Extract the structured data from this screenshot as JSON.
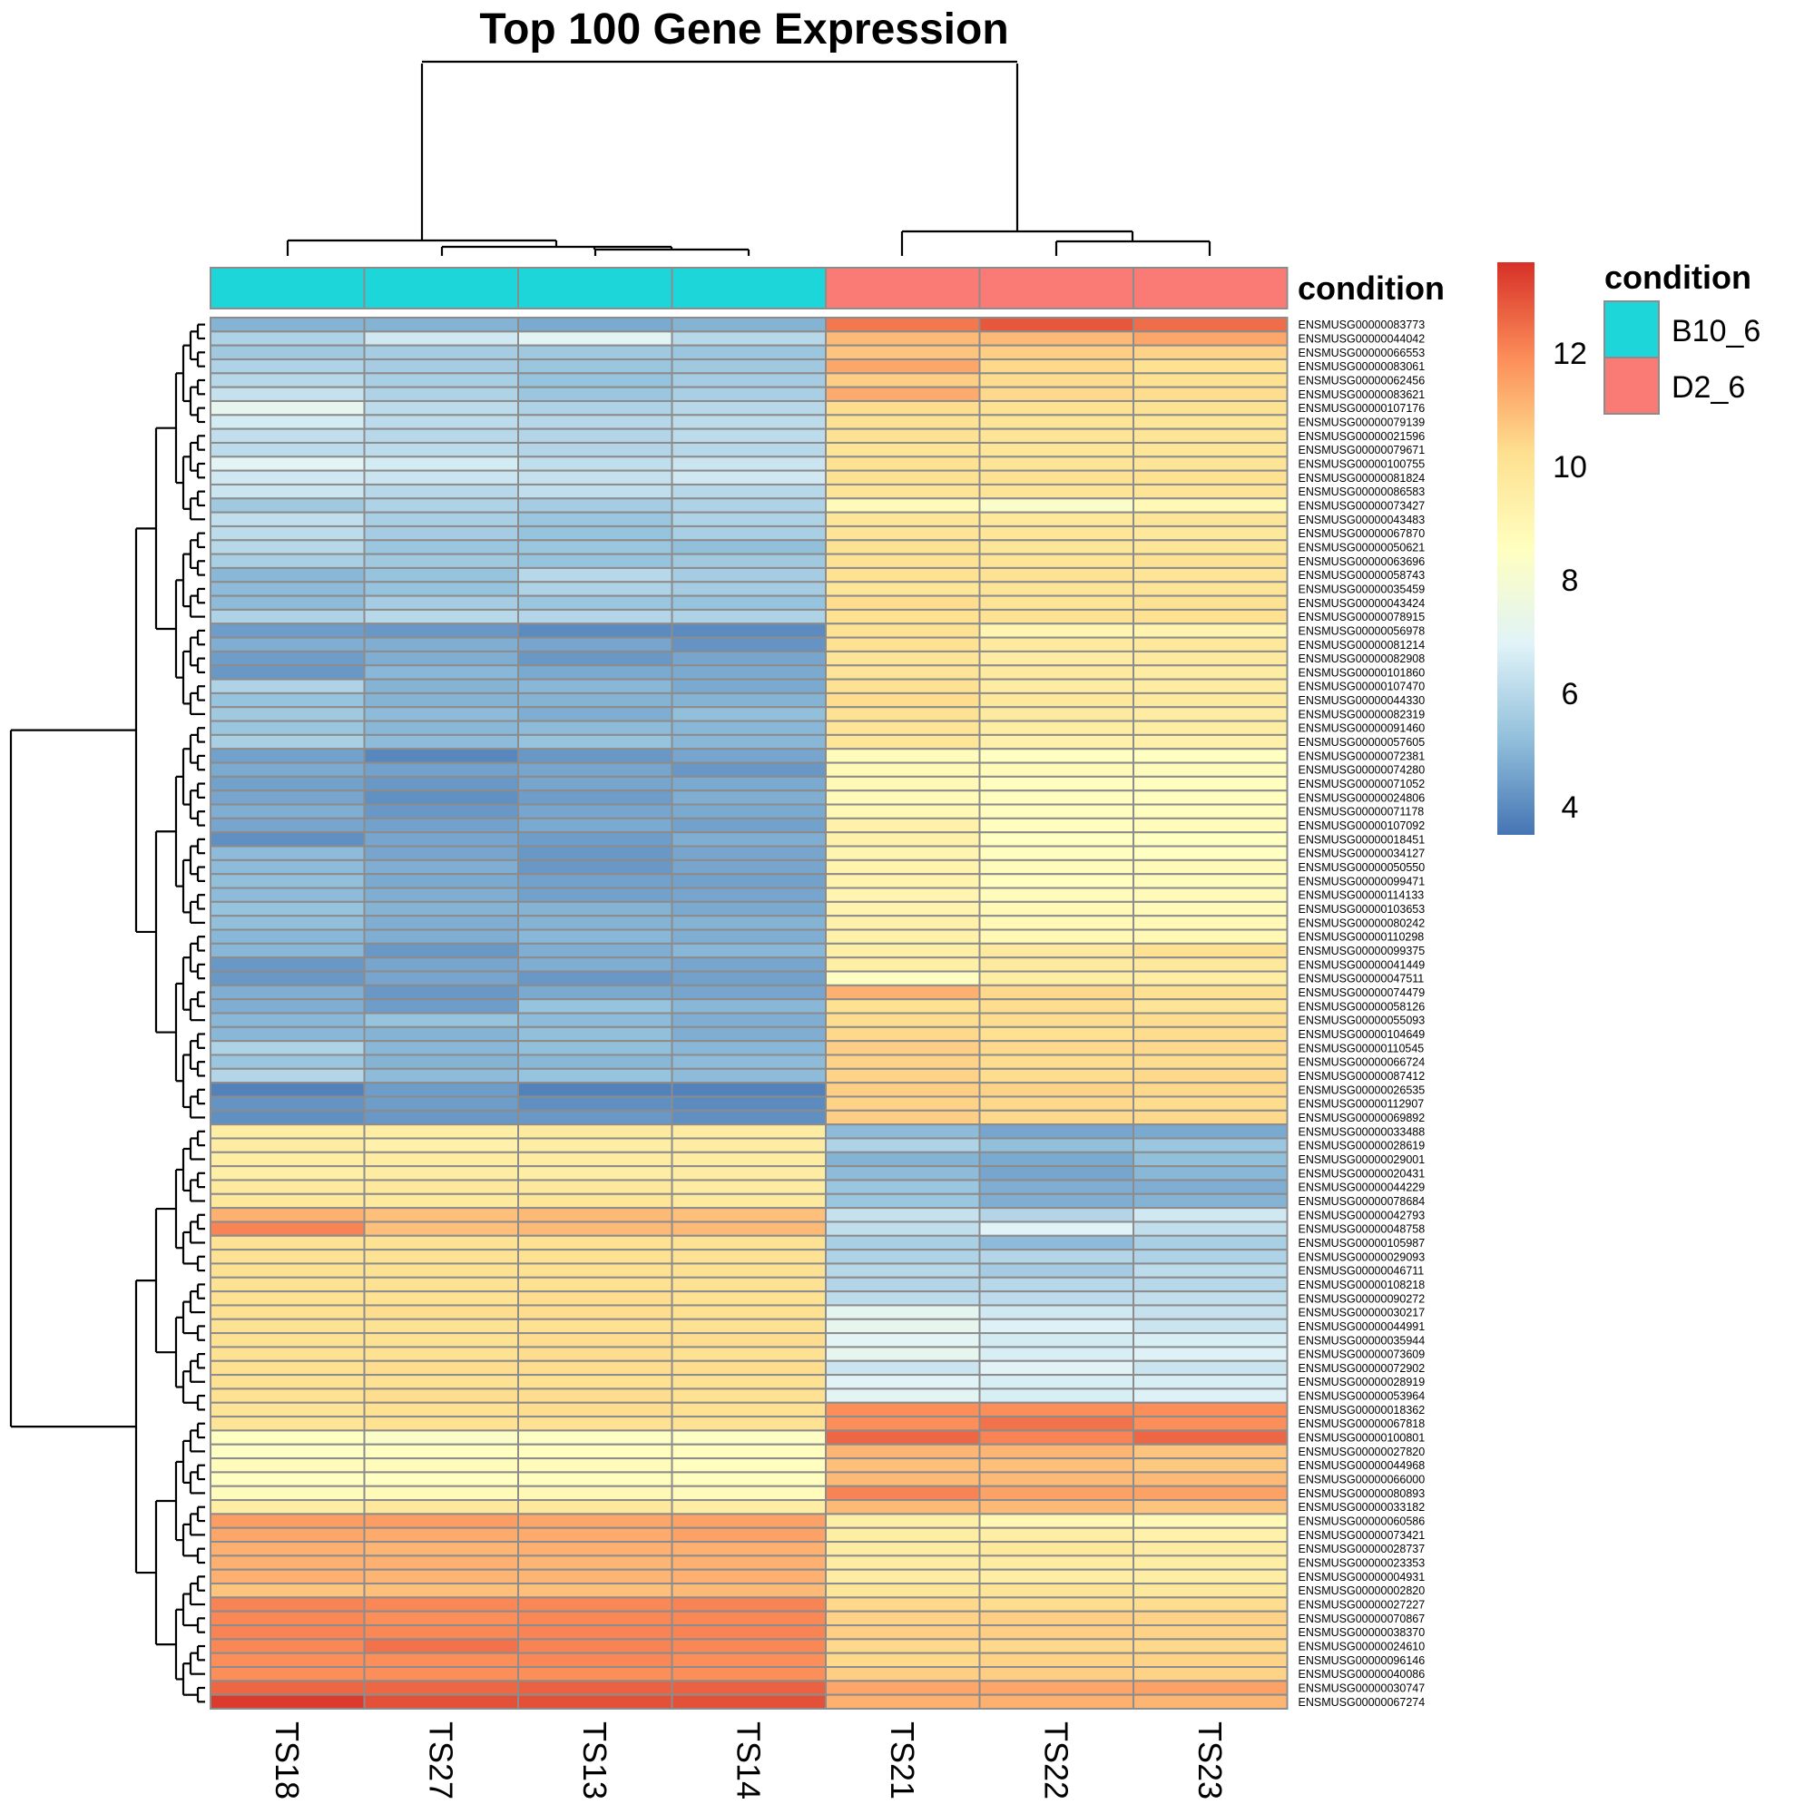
{
  "chart_data": {
    "type": "heatmap",
    "title": "Top 100 Gene Expression",
    "samples": [
      "TS18",
      "TS27",
      "TS13",
      "TS14",
      "TS21",
      "TS22",
      "TS23"
    ],
    "annotation": {
      "title": "condition",
      "values": [
        "B10_6",
        "B10_6",
        "B10_6",
        "B10_6",
        "D2_6",
        "D2_6",
        "D2_6"
      ],
      "legend": [
        {
          "label": "B10_6",
          "color": "#1dd6d9"
        },
        {
          "label": "D2_6",
          "color": "#fa7b76"
        }
      ]
    },
    "colorbar": {
      "min": 3.5,
      "max": 13.6,
      "ticks": [
        "4",
        "6",
        "8",
        "10",
        "12"
      ],
      "tick_values": [
        4,
        6,
        8,
        10,
        12
      ],
      "palette": [
        "#4575b4",
        "#91bfdb",
        "#e0f3f8",
        "#ffffbf",
        "#fee090",
        "#fc8d59",
        "#d73027"
      ]
    },
    "genes": [
      "ENSMUSG00000083773",
      "ENSMUSG00000044042",
      "ENSMUSG00000066553",
      "ENSMUSG00000083061",
      "ENSMUSG00000062456",
      "ENSMUSG00000083621",
      "ENSMUSG00000107176",
      "ENSMUSG00000079139",
      "ENSMUSG00000021596",
      "ENSMUSG00000079671",
      "ENSMUSG00000100755",
      "ENSMUSG00000081824",
      "ENSMUSG00000086583",
      "ENSMUSG00000073427",
      "ENSMUSG00000043483",
      "ENSMUSG00000067870",
      "ENSMUSG00000050621",
      "ENSMUSG00000063696",
      "ENSMUSG00000058743",
      "ENSMUSG00000035459",
      "ENSMUSG00000043424",
      "ENSMUSG00000078915",
      "ENSMUSG00000056978",
      "ENSMUSG00000081214",
      "ENSMUSG00000082908",
      "ENSMUSG00000101860",
      "ENSMUSG00000107470",
      "ENSMUSG00000044330",
      "ENSMUSG00000082319",
      "ENSMUSG00000091460",
      "ENSMUSG00000057605",
      "ENSMUSG00000072381",
      "ENSMUSG00000074280",
      "ENSMUSG00000071052",
      "ENSMUSG00000024806",
      "ENSMUSG00000071178",
      "ENSMUSG00000107092",
      "ENSMUSG00000018451",
      "ENSMUSG00000034127",
      "ENSMUSG00000050550",
      "ENSMUSG00000099471",
      "ENSMUSG00000114133",
      "ENSMUSG00000103653",
      "ENSMUSG00000080242",
      "ENSMUSG00000110298",
      "ENSMUSG00000099375",
      "ENSMUSG00000041449",
      "ENSMUSG00000047511",
      "ENSMUSG00000074479",
      "ENSMUSG00000058126",
      "ENSMUSG00000055093",
      "ENSMUSG00000104649",
      "ENSMUSG00000110545",
      "ENSMUSG00000066724",
      "ENSMUSG00000087412",
      "ENSMUSG00000026535",
      "ENSMUSG00000112907",
      "ENSMUSG00000069892",
      "ENSMUSG00000033488",
      "ENSMUSG00000028619",
      "ENSMUSG00000029001",
      "ENSMUSG00000020431",
      "ENSMUSG00000044229",
      "ENSMUSG00000078684",
      "ENSMUSG00000042793",
      "ENSMUSG00000048758",
      "ENSMUSG00000105987",
      "ENSMUSG00000029093",
      "ENSMUSG00000046711",
      "ENSMUSG00000108218",
      "ENSMUSG00000090272",
      "ENSMUSG00000030217",
      "ENSMUSG00000044991",
      "ENSMUSG00000035944",
      "ENSMUSG00000073609",
      "ENSMUSG00000072902",
      "ENSMUSG00000028919",
      "ENSMUSG00000053964",
      "ENSMUSG00000018362",
      "ENSMUSG00000067818",
      "ENSMUSG00000100801",
      "ENSMUSG00000027820",
      "ENSMUSG00000044968",
      "ENSMUSG00000066000",
      "ENSMUSG00000080893",
      "ENSMUSG00000033182",
      "ENSMUSG00000060586",
      "ENSMUSG00000073421",
      "ENSMUSG00000028737",
      "ENSMUSG00000023353",
      "ENSMUSG00000004931",
      "ENSMUSG00000002820",
      "ENSMUSG00000027227",
      "ENSMUSG00000070867",
      "ENSMUSG00000038370",
      "ENSMUSG00000024610",
      "ENSMUSG00000096146",
      "ENSMUSG00000040086",
      "ENSMUSG00000030747",
      "ENSMUSG00000067274"
    ],
    "values": [
      [
        4.9,
        4.9,
        4.7,
        4.9,
        12.3,
        12.9,
        12.5
      ],
      [
        5.8,
        6.5,
        7.0,
        6.0,
        11.0,
        11.0,
        11.4
      ],
      [
        5.5,
        5.6,
        5.5,
        5.4,
        10.8,
        10.6,
        10.5
      ],
      [
        5.8,
        5.6,
        5.4,
        5.5,
        11.4,
        10.4,
        10.2
      ],
      [
        6.0,
        5.7,
        5.3,
        5.6,
        10.6,
        10.3,
        10.2
      ],
      [
        6.3,
        5.8,
        5.4,
        5.7,
        11.3,
        10.4,
        10.3
      ],
      [
        7.2,
        6.1,
        5.8,
        6.0,
        10.3,
        10.2,
        10.1
      ],
      [
        6.6,
        6.1,
        6.0,
        6.1,
        10.1,
        10.0,
        9.9
      ],
      [
        6.2,
        6.0,
        5.9,
        6.1,
        10.1,
        10.0,
        10.0
      ],
      [
        6.1,
        6.1,
        5.9,
        6.0,
        10.0,
        9.9,
        9.9
      ],
      [
        7.0,
        6.6,
        6.2,
        6.4,
        10.2,
        10.0,
        10.0
      ],
      [
        6.5,
        6.4,
        6.3,
        6.5,
        10.1,
        10.1,
        10.2
      ],
      [
        6.4,
        6.0,
        6.2,
        6.0,
        10.0,
        10.0,
        10.0
      ],
      [
        5.5,
        5.8,
        5.6,
        5.8,
        8.8,
        8.3,
        8.9
      ],
      [
        6.2,
        5.7,
        5.4,
        5.8,
        9.9,
        9.8,
        9.9
      ],
      [
        6.1,
        5.6,
        5.3,
        5.7,
        10.0,
        9.9,
        9.8
      ],
      [
        6.0,
        5.4,
        5.4,
        5.2,
        10.1,
        9.9,
        9.9
      ],
      [
        5.7,
        5.5,
        5.3,
        5.5,
        10.1,
        10.0,
        10.1
      ],
      [
        5.0,
        5.3,
        6.0,
        5.6,
        10.2,
        10.1,
        10.0
      ],
      [
        5.1,
        5.3,
        5.8,
        5.6,
        9.9,
        10.0,
        10.0
      ],
      [
        5.1,
        5.6,
        5.4,
        5.3,
        10.3,
        10.0,
        10.1
      ],
      [
        5.8,
        6.0,
        5.9,
        5.8,
        10.2,
        10.1,
        10.2
      ],
      [
        4.4,
        4.3,
        4.0,
        4.0,
        10.1,
        9.1,
        9.2
      ],
      [
        4.8,
        4.8,
        4.6,
        4.2,
        10.2,
        9.7,
        9.8
      ],
      [
        4.4,
        4.8,
        4.3,
        4.6,
        10.0,
        9.6,
        9.7
      ],
      [
        4.3,
        5.0,
        4.7,
        4.7,
        10.0,
        9.7,
        9.6
      ],
      [
        5.8,
        4.9,
        5.0,
        4.7,
        10.2,
        9.6,
        9.6
      ],
      [
        5.3,
        4.9,
        4.9,
        4.9,
        10.3,
        9.8,
        9.7
      ],
      [
        5.5,
        5.1,
        4.8,
        5.2,
        10.1,
        9.7,
        9.6
      ],
      [
        5.4,
        5.0,
        5.1,
        5.0,
        10.0,
        9.5,
        9.5
      ],
      [
        5.7,
        5.1,
        5.3,
        5.0,
        9.9,
        9.3,
        9.3
      ],
      [
        4.5,
        3.9,
        4.3,
        4.6,
        8.7,
        8.5,
        8.5
      ],
      [
        4.7,
        4.5,
        4.6,
        4.3,
        8.9,
        8.8,
        8.7
      ],
      [
        4.5,
        4.3,
        4.6,
        4.7,
        8.9,
        8.6,
        8.6
      ],
      [
        4.6,
        4.1,
        4.4,
        4.8,
        8.8,
        8.6,
        8.6
      ],
      [
        4.8,
        4.3,
        4.6,
        4.7,
        8.9,
        8.6,
        8.6
      ],
      [
        4.6,
        4.5,
        4.7,
        4.5,
        9.3,
        8.6,
        8.7
      ],
      [
        4.1,
        4.6,
        4.4,
        4.8,
        9.3,
        8.5,
        8.5
      ],
      [
        5.1,
        4.6,
        4.3,
        4.6,
        9.1,
        8.6,
        8.5
      ],
      [
        5.1,
        4.8,
        4.3,
        4.6,
        9.2,
        8.7,
        8.8
      ],
      [
        5.2,
        4.7,
        4.5,
        4.5,
        9.2,
        8.6,
        8.7
      ],
      [
        5.1,
        4.8,
        4.5,
        4.6,
        9.1,
        8.7,
        8.8
      ],
      [
        5.3,
        4.9,
        4.9,
        4.7,
        9.2,
        8.9,
        8.8
      ],
      [
        5.2,
        4.8,
        4.9,
        4.9,
        9.3,
        8.9,
        8.9
      ],
      [
        5.0,
        4.8,
        5.0,
        4.8,
        9.3,
        8.9,
        8.9
      ],
      [
        5.0,
        4.3,
        4.8,
        5.0,
        9.4,
        9.7,
        10.2
      ],
      [
        4.3,
        4.6,
        4.8,
        4.6,
        9.4,
        9.7,
        9.8
      ],
      [
        4.3,
        4.6,
        4.3,
        4.5,
        8.5,
        9.5,
        9.5
      ],
      [
        4.8,
        4.3,
        4.7,
        4.6,
        11.2,
        10.4,
        10.2
      ],
      [
        4.8,
        4.4,
        5.3,
        5.0,
        10.2,
        10.3,
        10.0
      ],
      [
        5.0,
        5.3,
        5.1,
        4.8,
        10.3,
        10.3,
        10.3
      ],
      [
        5.0,
        4.9,
        5.2,
        4.8,
        10.4,
        10.2,
        10.3
      ],
      [
        5.8,
        5.0,
        5.2,
        5.0,
        10.6,
        10.4,
        10.4
      ],
      [
        5.4,
        4.9,
        5.0,
        5.1,
        10.5,
        10.3,
        10.3
      ],
      [
        5.9,
        5.1,
        5.3,
        5.1,
        10.5,
        10.3,
        10.4
      ],
      [
        3.8,
        4.4,
        3.8,
        3.8,
        10.6,
        10.5,
        10.4
      ],
      [
        4.2,
        4.4,
        4.1,
        4.0,
        10.5,
        10.4,
        10.3
      ],
      [
        4.1,
        4.3,
        4.3,
        4.1,
        10.6,
        10.4,
        10.4
      ],
      [
        9.5,
        9.5,
        9.7,
        9.6,
        5.1,
        4.6,
        4.7
      ],
      [
        9.6,
        9.3,
        9.5,
        9.6,
        5.8,
        5.2,
        5.4
      ],
      [
        9.5,
        9.6,
        9.6,
        9.6,
        4.9,
        4.7,
        5.2
      ],
      [
        9.4,
        9.6,
        9.5,
        9.6,
        5.1,
        4.6,
        5.0
      ],
      [
        9.7,
        9.8,
        9.8,
        9.6,
        5.4,
        4.8,
        4.8
      ],
      [
        9.8,
        9.7,
        9.9,
        9.7,
        5.4,
        4.8,
        4.9
      ],
      [
        11.2,
        10.9,
        11.0,
        10.9,
        6.3,
        5.9,
        6.5
      ],
      [
        12.1,
        10.9,
        11.0,
        11.0,
        6.2,
        6.9,
        6.2
      ],
      [
        10.1,
        10.1,
        10.2,
        10.1,
        5.7,
        5.1,
        5.7
      ],
      [
        10.1,
        10.1,
        10.2,
        10.1,
        5.8,
        5.9,
        5.8
      ],
      [
        10.1,
        10.1,
        10.2,
        10.1,
        6.0,
        5.6,
        6.1
      ],
      [
        10.1,
        10.1,
        10.2,
        10.1,
        5.9,
        6.0,
        6.0
      ],
      [
        10.2,
        10.2,
        10.3,
        10.2,
        6.1,
        6.1,
        6.2
      ],
      [
        10.2,
        10.3,
        10.3,
        10.2,
        7.1,
        6.5,
        6.3
      ],
      [
        10.1,
        10.1,
        10.2,
        10.1,
        7.2,
        6.8,
        6.4
      ],
      [
        10.2,
        10.2,
        10.3,
        10.3,
        7.0,
        6.6,
        6.7
      ],
      [
        10.2,
        10.2,
        10.3,
        10.2,
        7.2,
        6.7,
        6.8
      ],
      [
        10.2,
        10.3,
        10.3,
        10.3,
        6.4,
        6.9,
        6.4
      ],
      [
        10.1,
        10.1,
        10.2,
        10.1,
        6.9,
        6.7,
        6.7
      ],
      [
        10.2,
        10.3,
        10.3,
        10.2,
        7.0,
        6.7,
        6.8
      ],
      [
        10.0,
        10.2,
        10.3,
        10.2,
        11.9,
        11.9,
        11.9
      ],
      [
        10.0,
        10.2,
        10.2,
        10.1,
        11.9,
        12.4,
        11.9
      ],
      [
        8.5,
        8.3,
        8.4,
        8.4,
        12.6,
        12.1,
        12.6
      ],
      [
        8.4,
        8.5,
        8.6,
        8.6,
        11.1,
        11.1,
        10.8
      ],
      [
        8.7,
        8.7,
        8.7,
        8.6,
        10.9,
        10.9,
        10.7
      ],
      [
        8.5,
        8.5,
        8.6,
        8.6,
        11.0,
        11.0,
        11.0
      ],
      [
        8.7,
        8.8,
        8.9,
        8.7,
        12.1,
        11.5,
        11.5
      ],
      [
        9.5,
        9.8,
        9.8,
        9.5,
        11.0,
        11.0,
        10.8
      ],
      [
        11.6,
        11.6,
        11.4,
        11.5,
        9.4,
        9.0,
        8.9
      ],
      [
        11.4,
        11.3,
        11.3,
        11.5,
        9.5,
        9.5,
        9.3
      ],
      [
        11.2,
        11.1,
        11.2,
        11.2,
        9.6,
        9.8,
        9.6
      ],
      [
        11.2,
        11.2,
        11.1,
        11.2,
        9.6,
        9.6,
        9.5
      ],
      [
        11.2,
        11.1,
        11.1,
        11.2,
        9.6,
        9.5,
        9.5
      ],
      [
        10.8,
        10.9,
        10.9,
        11.0,
        9.9,
        10.0,
        9.8
      ],
      [
        12.1,
        12.0,
        12.0,
        12.1,
        10.4,
        10.3,
        10.3
      ],
      [
        12.0,
        11.9,
        12.0,
        12.0,
        10.5,
        10.6,
        10.5
      ],
      [
        12.1,
        12.0,
        12.1,
        12.1,
        10.6,
        10.6,
        10.5
      ],
      [
        12.0,
        12.4,
        12.1,
        12.0,
        10.4,
        10.4,
        10.4
      ],
      [
        11.9,
        11.9,
        12.0,
        11.9,
        10.4,
        10.5,
        10.5
      ],
      [
        11.9,
        11.9,
        11.9,
        11.9,
        10.6,
        10.6,
        10.5
      ],
      [
        12.6,
        12.6,
        12.7,
        12.7,
        11.4,
        11.4,
        11.5
      ],
      [
        13.4,
        13.0,
        13.0,
        13.0,
        11.2,
        11.2,
        11.1
      ]
    ]
  }
}
